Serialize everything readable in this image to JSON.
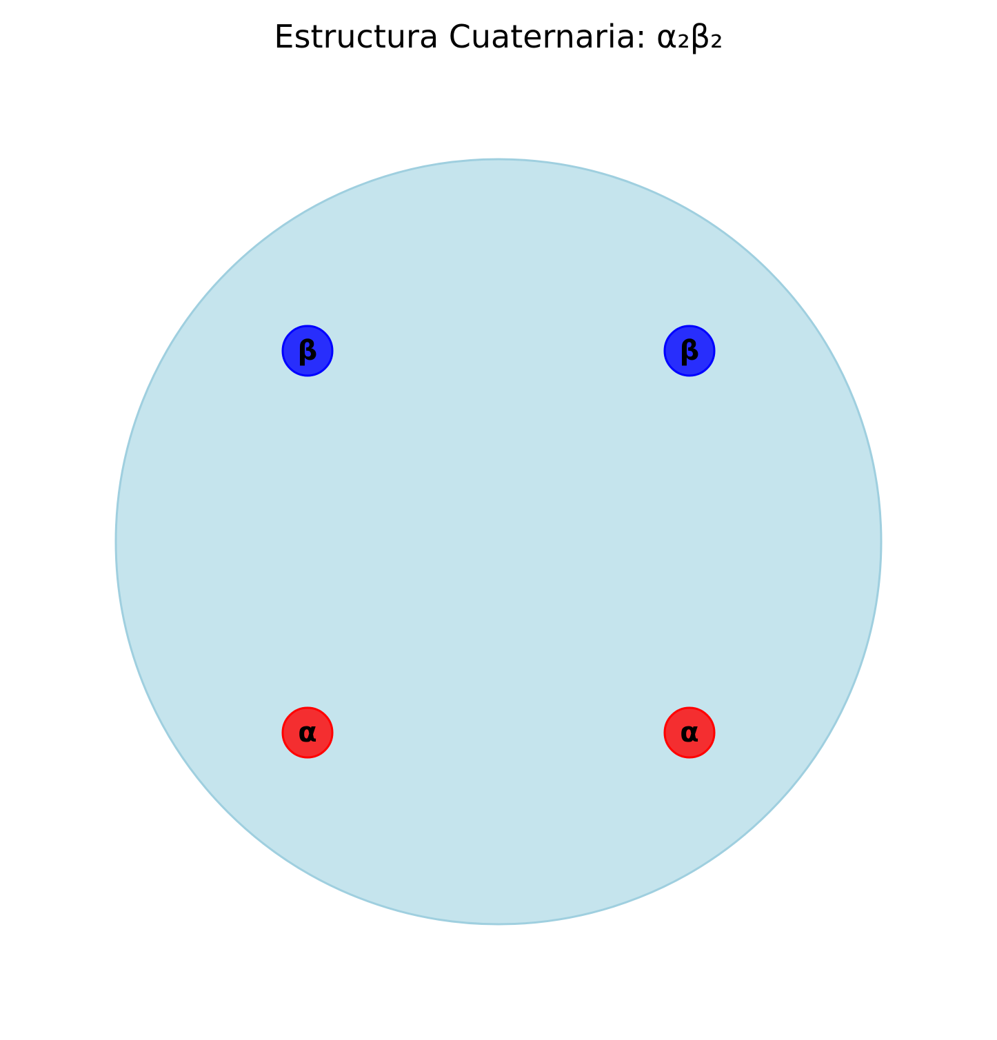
{
  "title": "Estructura Cuaternaria: α₂β₂",
  "complex": {
    "fill_color": "#add8e6",
    "border_color": "#9fcfdf"
  },
  "subunits": [
    {
      "label": "β",
      "color": "#0000ff"
    },
    {
      "label": "β",
      "color": "#0000ff"
    },
    {
      "label": "α",
      "color": "#ff0000"
    },
    {
      "label": "α",
      "color": "#ff0000"
    }
  ]
}
